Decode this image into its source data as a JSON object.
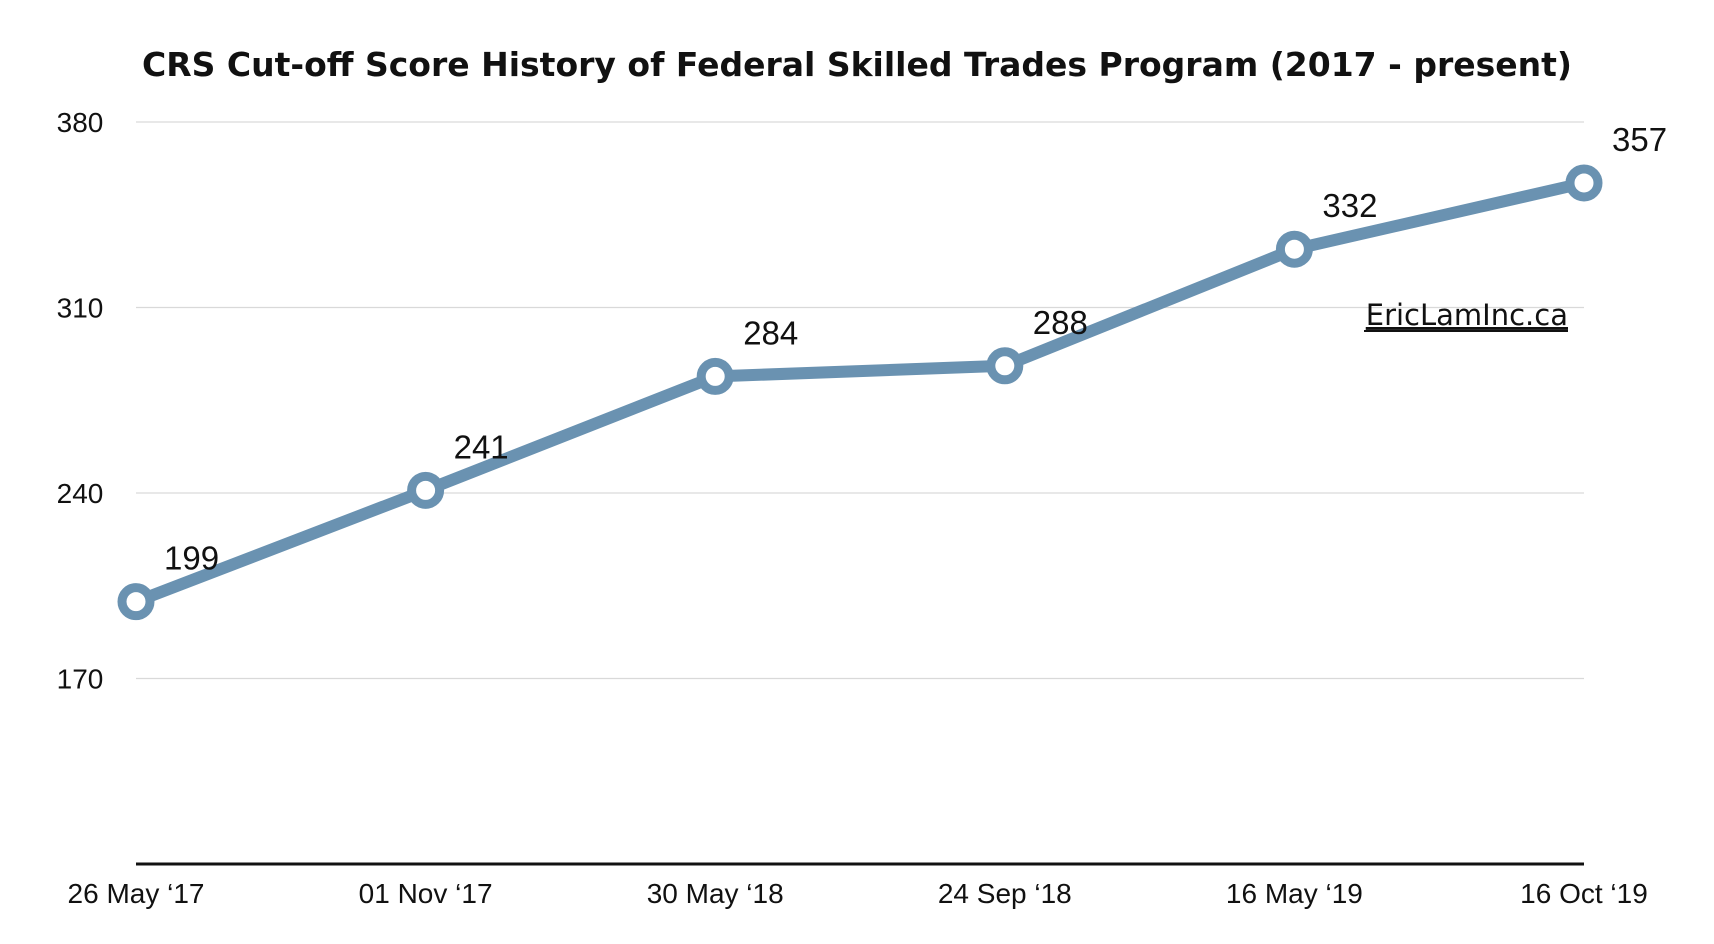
{
  "chart_data": {
    "type": "line",
    "title": "CRS Cut-off Score History of Federal Skilled Trades Program (2017 - present)",
    "categories": [
      "26 May ‘17",
      "01 Nov ‘17",
      "30 May ‘18",
      "24 Sep ‘18",
      "16 May ‘19",
      "16 Oct ‘19"
    ],
    "series": [
      {
        "values": [
          199,
          241,
          284,
          288,
          332,
          357
        ]
      }
    ],
    "data_labels": [
      "199",
      "241",
      "284",
      "288",
      "332",
      "357"
    ],
    "y_ticks": [
      380,
      310,
      240,
      170
    ],
    "y_tick_labels": [
      "380",
      "310",
      "240",
      "170"
    ],
    "ylim": [
      100,
      380
    ],
    "grid": true,
    "legend": "none",
    "xlabel": "",
    "ylabel": "",
    "watermark": "EricLamInc.ca",
    "colors": {
      "line": "#6a92b1",
      "marker_fill": "#ffffff",
      "text": "#111111",
      "grid": "#d9d9d9"
    }
  }
}
